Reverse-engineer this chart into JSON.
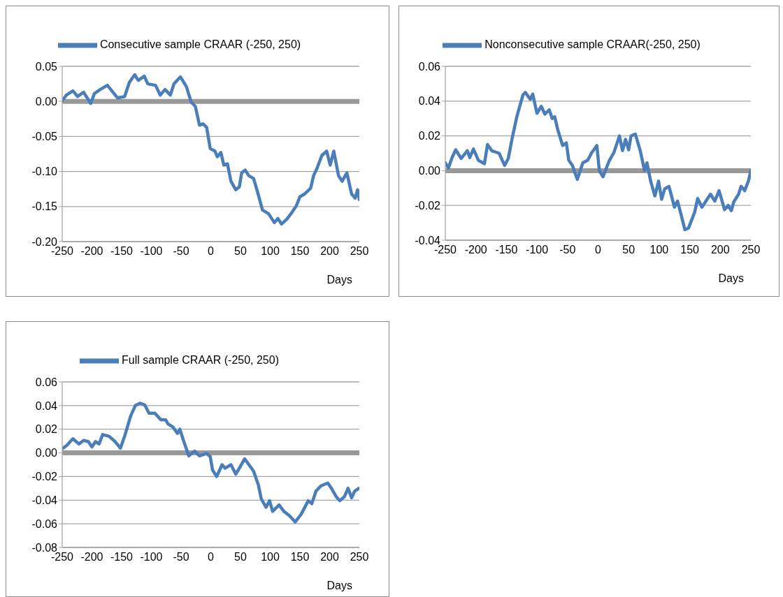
{
  "chart_data": [
    {
      "type": "line",
      "x": [
        -250,
        -243,
        -232,
        -224,
        -214,
        -202,
        -196,
        -186,
        -174,
        -157,
        -145,
        -137,
        -128,
        -122,
        -112,
        -106,
        -93,
        -85,
        -77,
        -68,
        -62,
        -51,
        -41,
        -33,
        -26,
        -19,
        -13,
        -7,
        -1,
        7,
        11,
        17,
        22,
        28,
        34,
        42,
        48,
        52,
        58,
        64,
        72,
        79,
        87,
        97,
        107,
        113,
        119,
        128,
        136,
        144,
        150,
        158,
        168,
        173,
        179,
        187,
        195,
        201,
        207,
        215,
        221,
        229,
        237,
        243,
        247,
        250
      ],
      "series": [
        {
          "name": "Consecutive sample CRAAR (-250, 250)",
          "color": "#4a7ebb",
          "values": [
            0.001,
            0.009,
            0.015,
            0.007,
            0.013,
            -0.003,
            0.011,
            0.017,
            0.023,
            0.005,
            0.007,
            0.027,
            0.038,
            0.03,
            0.036,
            0.025,
            0.023,
            0.009,
            0.017,
            0.009,
            0.025,
            0.035,
            0.021,
            -0.001,
            -0.007,
            -0.034,
            -0.032,
            -0.037,
            -0.067,
            -0.071,
            -0.079,
            -0.073,
            -0.091,
            -0.089,
            -0.114,
            -0.126,
            -0.122,
            -0.102,
            -0.098,
            -0.106,
            -0.11,
            -0.13,
            -0.155,
            -0.16,
            -0.173,
            -0.167,
            -0.175,
            -0.168,
            -0.159,
            -0.149,
            -0.136,
            -0.132,
            -0.124,
            -0.106,
            -0.095,
            -0.077,
            -0.071,
            -0.091,
            -0.071,
            -0.106,
            -0.114,
            -0.102,
            -0.132,
            -0.138,
            -0.126,
            -0.14
          ]
        }
      ],
      "xlim": [
        -250,
        250
      ],
      "xticks": [
        -250,
        -200,
        -150,
        -100,
        -50,
        0,
        50,
        100,
        150,
        200,
        250
      ],
      "xlabel": "Days",
      "ylim": [
        -0.2,
        0.05
      ],
      "yticks": [
        {
          "value": -0.2,
          "label": "-0.20"
        },
        {
          "value": -0.15,
          "label": "-0.15"
        },
        {
          "value": -0.1,
          "label": "-0.10"
        },
        {
          "value": -0.05,
          "label": "-0.05"
        },
        {
          "value": 0,
          "label": "0.00"
        },
        {
          "value": 0.05,
          "label": "0.05"
        }
      ],
      "grid": "y",
      "legend": "top",
      "marker": "none",
      "line_style": "solid",
      "ref_lines": [
        {
          "axis": "y",
          "value": 0,
          "color": "#999999"
        }
      ]
    },
    {
      "type": "line",
      "x": [
        -250,
        -245,
        -239,
        -233,
        -224,
        -214,
        -210,
        -204,
        -196,
        -186,
        -181,
        -174,
        -162,
        -153,
        -147,
        -141,
        -133,
        -123,
        -119,
        -111,
        -107,
        -100,
        -93,
        -87,
        -80,
        -75,
        -71,
        -66,
        -58,
        -52,
        -48,
        -42,
        -34,
        -25,
        -17,
        -11,
        -2,
        2,
        8,
        18,
        26,
        35,
        40,
        45,
        50,
        54,
        61,
        69,
        76,
        80,
        86,
        93,
        99,
        104,
        109,
        116,
        125,
        130,
        136,
        142,
        148,
        158,
        163,
        170,
        184,
        191,
        198,
        207,
        213,
        218,
        222,
        230,
        234,
        240,
        246,
        250
      ],
      "series": [
        {
          "name": "Nonconsecutive sample CRAAR(-250, 250)",
          "color": "#4a7ebb",
          "values": [
            0.0045,
            0.0015,
            0.0075,
            0.012,
            0.007,
            0.0115,
            0.0075,
            0.0125,
            0.006,
            0.004,
            0.015,
            0.0115,
            0.01,
            0.003,
            0.007,
            0.018,
            0.031,
            0.0435,
            0.045,
            0.041,
            0.044,
            0.033,
            0.037,
            0.0325,
            0.035,
            0.03,
            0.031,
            0.0235,
            0.0145,
            0.016,
            0.006,
            0.003,
            -0.005,
            0.0045,
            0.006,
            0.01,
            0.0145,
            0.0,
            -0.0035,
            0.0055,
            0.0105,
            0.02,
            0.0115,
            0.018,
            0.012,
            0.02,
            0.021,
            0.0115,
            0.0,
            0.0045,
            -0.006,
            -0.0145,
            -0.006,
            -0.0165,
            -0.0105,
            -0.009,
            -0.021,
            -0.0175,
            -0.0255,
            -0.034,
            -0.033,
            -0.024,
            -0.016,
            -0.021,
            -0.0135,
            -0.0175,
            -0.0115,
            -0.0225,
            -0.02,
            -0.023,
            -0.018,
            -0.0135,
            -0.009,
            -0.0115,
            -0.006,
            0.0
          ]
        }
      ],
      "xlim": [
        -250,
        250
      ],
      "xticks": [
        -250,
        -200,
        -150,
        -100,
        -50,
        0,
        50,
        100,
        150,
        200,
        250
      ],
      "xlabel": "Days",
      "ylim": [
        -0.04,
        0.06
      ],
      "yticks": [
        {
          "value": -0.04,
          "label": "-0.04"
        },
        {
          "value": -0.02,
          "label": "-0.02"
        },
        {
          "value": 0,
          "label": "0.00"
        },
        {
          "value": 0.02,
          "label": "0.02"
        },
        {
          "value": 0.04,
          "label": "0.04"
        },
        {
          "value": 0.06,
          "label": "0.06"
        }
      ],
      "grid": "y",
      "legend": "top",
      "marker": "none",
      "line_style": "solid",
      "ref_lines": [
        {
          "axis": "y",
          "value": 0,
          "color": "#999999"
        }
      ]
    },
    {
      "type": "line",
      "x": [
        -250,
        -243,
        -232,
        -222,
        -214,
        -206,
        -200,
        -194,
        -188,
        -182,
        -171,
        -161,
        -152,
        -145,
        -135,
        -127,
        -119,
        -111,
        -104,
        -94,
        -84,
        -76,
        -72,
        -64,
        -56,
        -52,
        -46,
        -37,
        -27,
        -19,
        -7,
        -1,
        3,
        10,
        19,
        24,
        34,
        42,
        48,
        57,
        72,
        80,
        85,
        93,
        99,
        104,
        115,
        123,
        132,
        142,
        152,
        164,
        170,
        177,
        185,
        197,
        203,
        211,
        217,
        225,
        231,
        237,
        242,
        249
      ],
      "series": [
        {
          "name": "Full sample CRAAR (-250, 250)",
          "color": "#4a7ebb",
          "values": [
            0.0035,
            0.006,
            0.012,
            0.0075,
            0.0105,
            0.0095,
            0.005,
            0.0095,
            0.0075,
            0.0155,
            0.014,
            0.0095,
            0.004,
            0.014,
            0.031,
            0.04,
            0.042,
            0.0405,
            0.0335,
            0.0335,
            0.028,
            0.028,
            0.0245,
            0.022,
            0.0165,
            0.02,
            0.0105,
            -0.0025,
            0.0015,
            -0.0025,
            -0.0005,
            -0.003,
            -0.0145,
            -0.02,
            -0.01,
            -0.013,
            -0.01,
            -0.018,
            -0.013,
            -0.005,
            -0.0155,
            -0.027,
            -0.039,
            -0.046,
            -0.0405,
            -0.0495,
            -0.044,
            -0.0495,
            -0.053,
            -0.0585,
            -0.052,
            -0.0405,
            -0.043,
            -0.0325,
            -0.028,
            -0.0255,
            -0.03,
            -0.037,
            -0.0405,
            -0.037,
            -0.03,
            -0.038,
            -0.0325,
            -0.03
          ]
        }
      ],
      "xlim": [
        -250,
        250
      ],
      "xticks": [
        -250,
        -200,
        -150,
        -100,
        -50,
        0,
        50,
        100,
        150,
        200,
        250
      ],
      "xlabel": "Days",
      "ylim": [
        -0.08,
        0.06
      ],
      "yticks": [
        {
          "value": -0.08,
          "label": "-0.08"
        },
        {
          "value": -0.06,
          "label": "-0.06"
        },
        {
          "value": -0.04,
          "label": "-0.04"
        },
        {
          "value": -0.02,
          "label": "-0.02"
        },
        {
          "value": 0,
          "label": "0.00"
        },
        {
          "value": 0.02,
          "label": "0.02"
        },
        {
          "value": 0.04,
          "label": "0.04"
        },
        {
          "value": 0.06,
          "label": "0.06"
        }
      ],
      "grid": "y",
      "legend": "top",
      "marker": "none",
      "line_style": "solid",
      "ref_lines": [
        {
          "axis": "y",
          "value": 0,
          "color": "#999999"
        }
      ]
    }
  ]
}
